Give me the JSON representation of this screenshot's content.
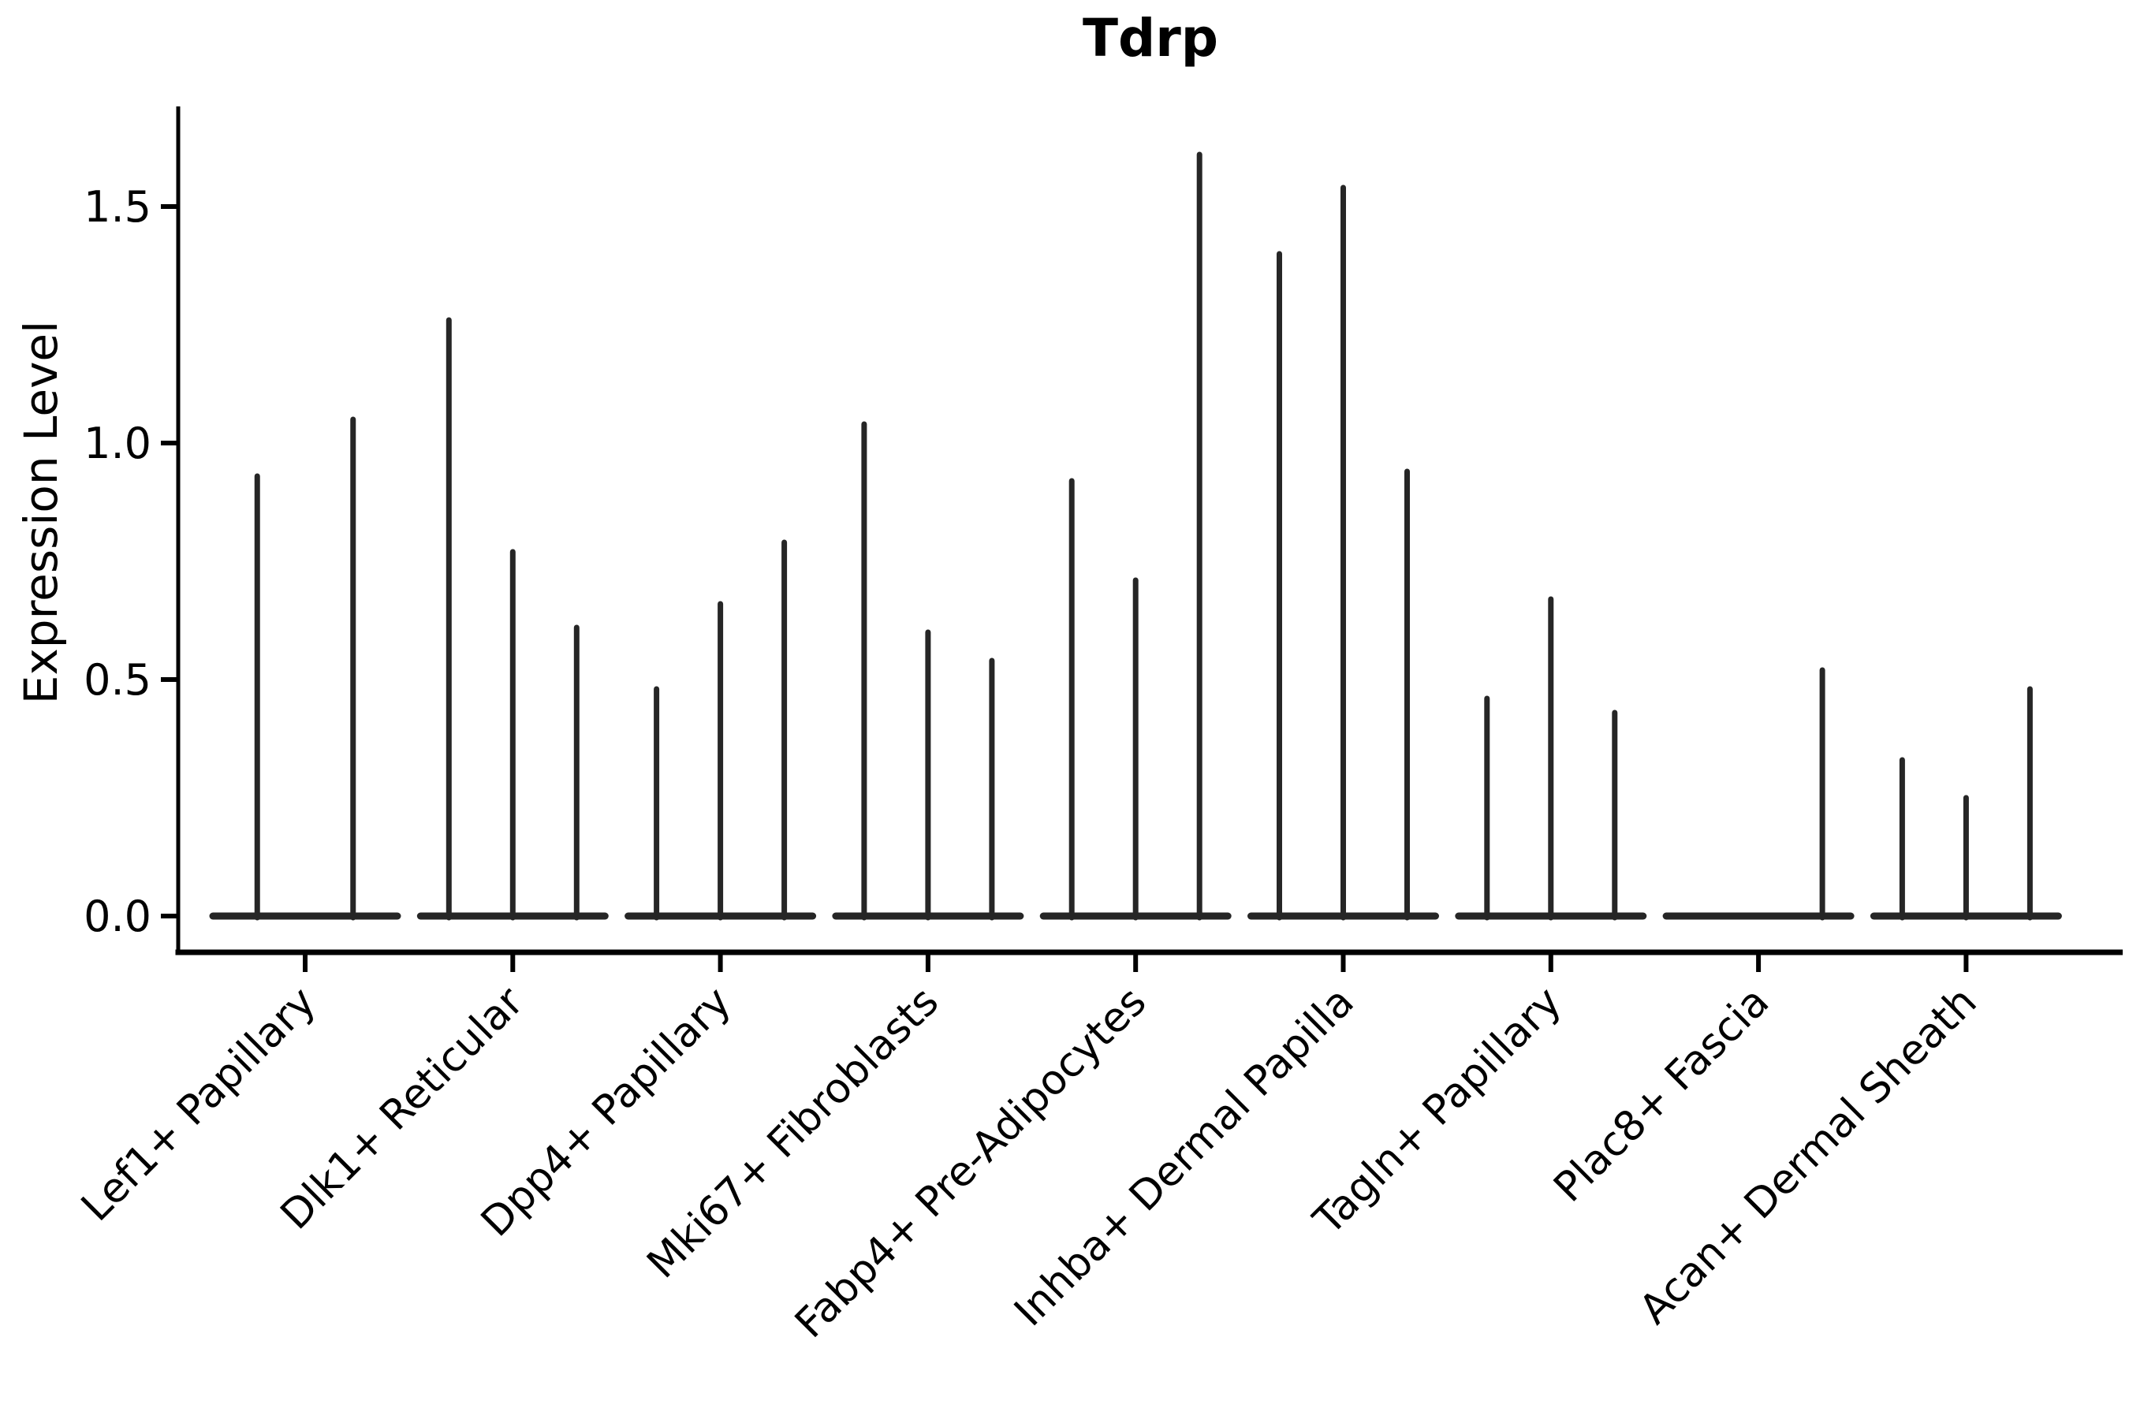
{
  "title": "Tdrp",
  "colors": {
    "violin_stroke": "#262626",
    "axis": "#000000",
    "background": "#ffffff"
  },
  "chart_data": {
    "type": "violin",
    "title": "Tdrp",
    "xlabel": "",
    "ylabel": "Expression Level",
    "ylim": [
      0,
      1.7
    ],
    "yticks": [
      "0.0",
      "0.5",
      "1.0",
      "1.5"
    ],
    "ytick_values": [
      0.0,
      0.5,
      1.0,
      1.5
    ],
    "grid": false,
    "legend_position": "none",
    "note": "Each category shows thin violins collapsed to a flat base at 0 with a narrow density spike; values below are the peak (max) expression level of each sub-violin, 0 = completely flat violin.",
    "categories": [
      "Lef1+ Papillary",
      "Dlk1+ Reticular",
      "Dpp4+ Papillary",
      "Mki67+ Fibroblasts",
      "Fabp4+ Pre-Adipocytes",
      "Inhba+ Dermal Papilla",
      "Tagln+ Papillary",
      "Plac8+ Fascia",
      "Acan+ Dermal Sheath"
    ],
    "series": [
      {
        "category": "Lef1+ Papillary",
        "violin_peaks": [
          0.93,
          1.05
        ]
      },
      {
        "category": "Dlk1+ Reticular",
        "violin_peaks": [
          1.26,
          0.77,
          0.61
        ]
      },
      {
        "category": "Dpp4+ Papillary",
        "violin_peaks": [
          0.48,
          0.66,
          0.79
        ]
      },
      {
        "category": "Mki67+ Fibroblasts",
        "violin_peaks": [
          1.04,
          0.6,
          0.54
        ]
      },
      {
        "category": "Fabp4+ Pre-Adipocytes",
        "violin_peaks": [
          0.92,
          0.71,
          1.61
        ]
      },
      {
        "category": "Inhba+ Dermal Papilla",
        "violin_peaks": [
          1.4,
          1.54,
          0.94
        ]
      },
      {
        "category": "Tagln+ Papillary",
        "violin_peaks": [
          0.46,
          0.67,
          0.43
        ]
      },
      {
        "category": "Plac8+ Fascia",
        "violin_peaks": [
          0,
          0,
          0.52
        ]
      },
      {
        "category": "Acan+ Dermal Sheath",
        "violin_peaks": [
          0.33,
          0.25,
          0.48
        ]
      }
    ]
  }
}
